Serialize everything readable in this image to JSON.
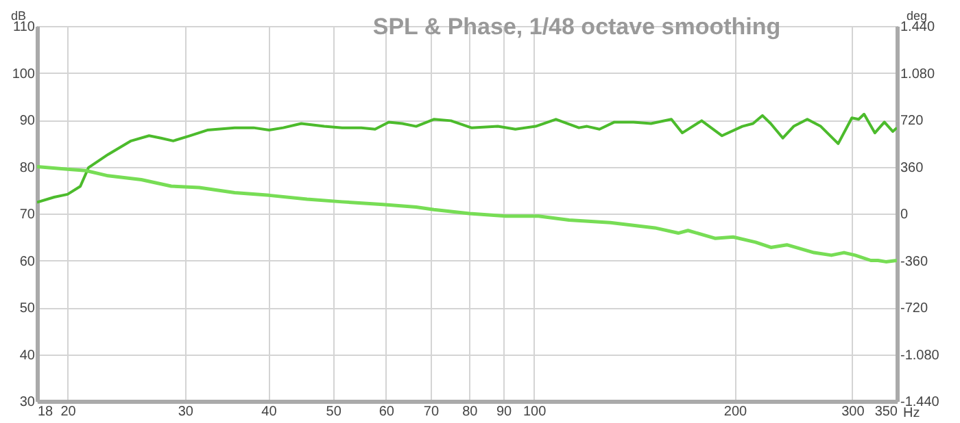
{
  "chart_data": {
    "type": "line",
    "title": "SPL & Phase, 1/48 octave smoothing",
    "xlabel": "Hz",
    "ylabel": "dB",
    "y2label": "deg",
    "log": "x",
    "grid": true,
    "xlim": [
      18,
      350
    ],
    "xticks": [
      18,
      20,
      30,
      40,
      50,
      60,
      70,
      80,
      90,
      100,
      200,
      300,
      350
    ],
    "ylim": [
      30,
      110
    ],
    "yticks": [
      30,
      40,
      50,
      60,
      70,
      80,
      90,
      100,
      110
    ],
    "y2lim": [
      -1440,
      1440
    ],
    "y2ticks": [
      {
        "value": -1440,
        "label": "-1.440"
      },
      {
        "value": -1080,
        "label": "-1.080"
      },
      -720,
      -360,
      0,
      360,
      720,
      {
        "value": 1080,
        "label": "1.080"
      },
      {
        "value": 1440,
        "label": "1.440"
      }
    ],
    "series": [
      {
        "color": "#4cbb2c",
        "x": [
          18,
          19.1,
          20,
          20.9,
          21.5,
          23,
          24.9,
          26.5,
          27.6,
          28.8,
          30.5,
          32.4,
          35.6,
          38,
          40.1,
          42.1,
          44.8,
          48.5,
          51.6,
          55.1,
          57.8,
          60.6,
          63.5,
          66.6,
          70.8,
          75.1,
          80.6,
          88.3,
          93.8,
          100.6,
          107.9,
          116.8,
          120.1,
          125.4,
          132,
          141,
          149.8,
          160.7,
          166.9,
          178.4,
          191.4,
          205.3,
          213,
          220.1,
          226.4,
          236.1,
          245.1,
          256.9,
          269.1,
          285.8,
          299.6,
          306.7,
          312.5,
          324.4,
          335.2,
          345.1,
          350
        ],
        "values": [
          72.4,
          73.5,
          74.1,
          75.8,
          79.8,
          82.6,
          85.5,
          86.6,
          86.1,
          85.5,
          86.6,
          87.8,
          88.3,
          88.3,
          87.8,
          88.3,
          89.2,
          88.6,
          88.3,
          88.3,
          88,
          89.5,
          89.2,
          88.6,
          90.1,
          89.8,
          88.3,
          88.6,
          88,
          88.6,
          90.1,
          88.3,
          88.6,
          88,
          89.5,
          89.5,
          89.2,
          90.1,
          87.2,
          89.8,
          86.6,
          88.6,
          89.2,
          90.9,
          89.2,
          86.1,
          88.6,
          90.1,
          88.6,
          84.9,
          90.4,
          90.1,
          91.2,
          87.2,
          89.5,
          87.5,
          88.3
        ]
      },
      {
        "color": "#77dd55",
        "axis": "y2",
        "x": [
          18,
          20,
          21.3,
          23,
          25.8,
          28.6,
          31.5,
          35.6,
          40.1,
          45.7,
          51.6,
          59.4,
          66.6,
          70.8,
          80.1,
          90.8,
          101.6,
          112.9,
          130.2,
          151.8,
          164.6,
          170.2,
          186.8,
          198.9,
          214.9,
          226.6,
          239.4,
          262.9,
          279.1,
          291.6,
          303,
          319.8,
          327.8,
          336.9,
          350
        ],
        "values": [
          360,
          340,
          330,
          290,
          260,
          210,
          200,
          160,
          140,
          110,
          90,
          70,
          50,
          30,
          0,
          -20,
          -20,
          -50,
          -70,
          -110,
          -150,
          -130,
          -190,
          -180,
          -220,
          -260,
          -240,
          -300,
          -320,
          -300,
          -320,
          -360,
          -360,
          -370,
          -360
        ]
      }
    ]
  }
}
